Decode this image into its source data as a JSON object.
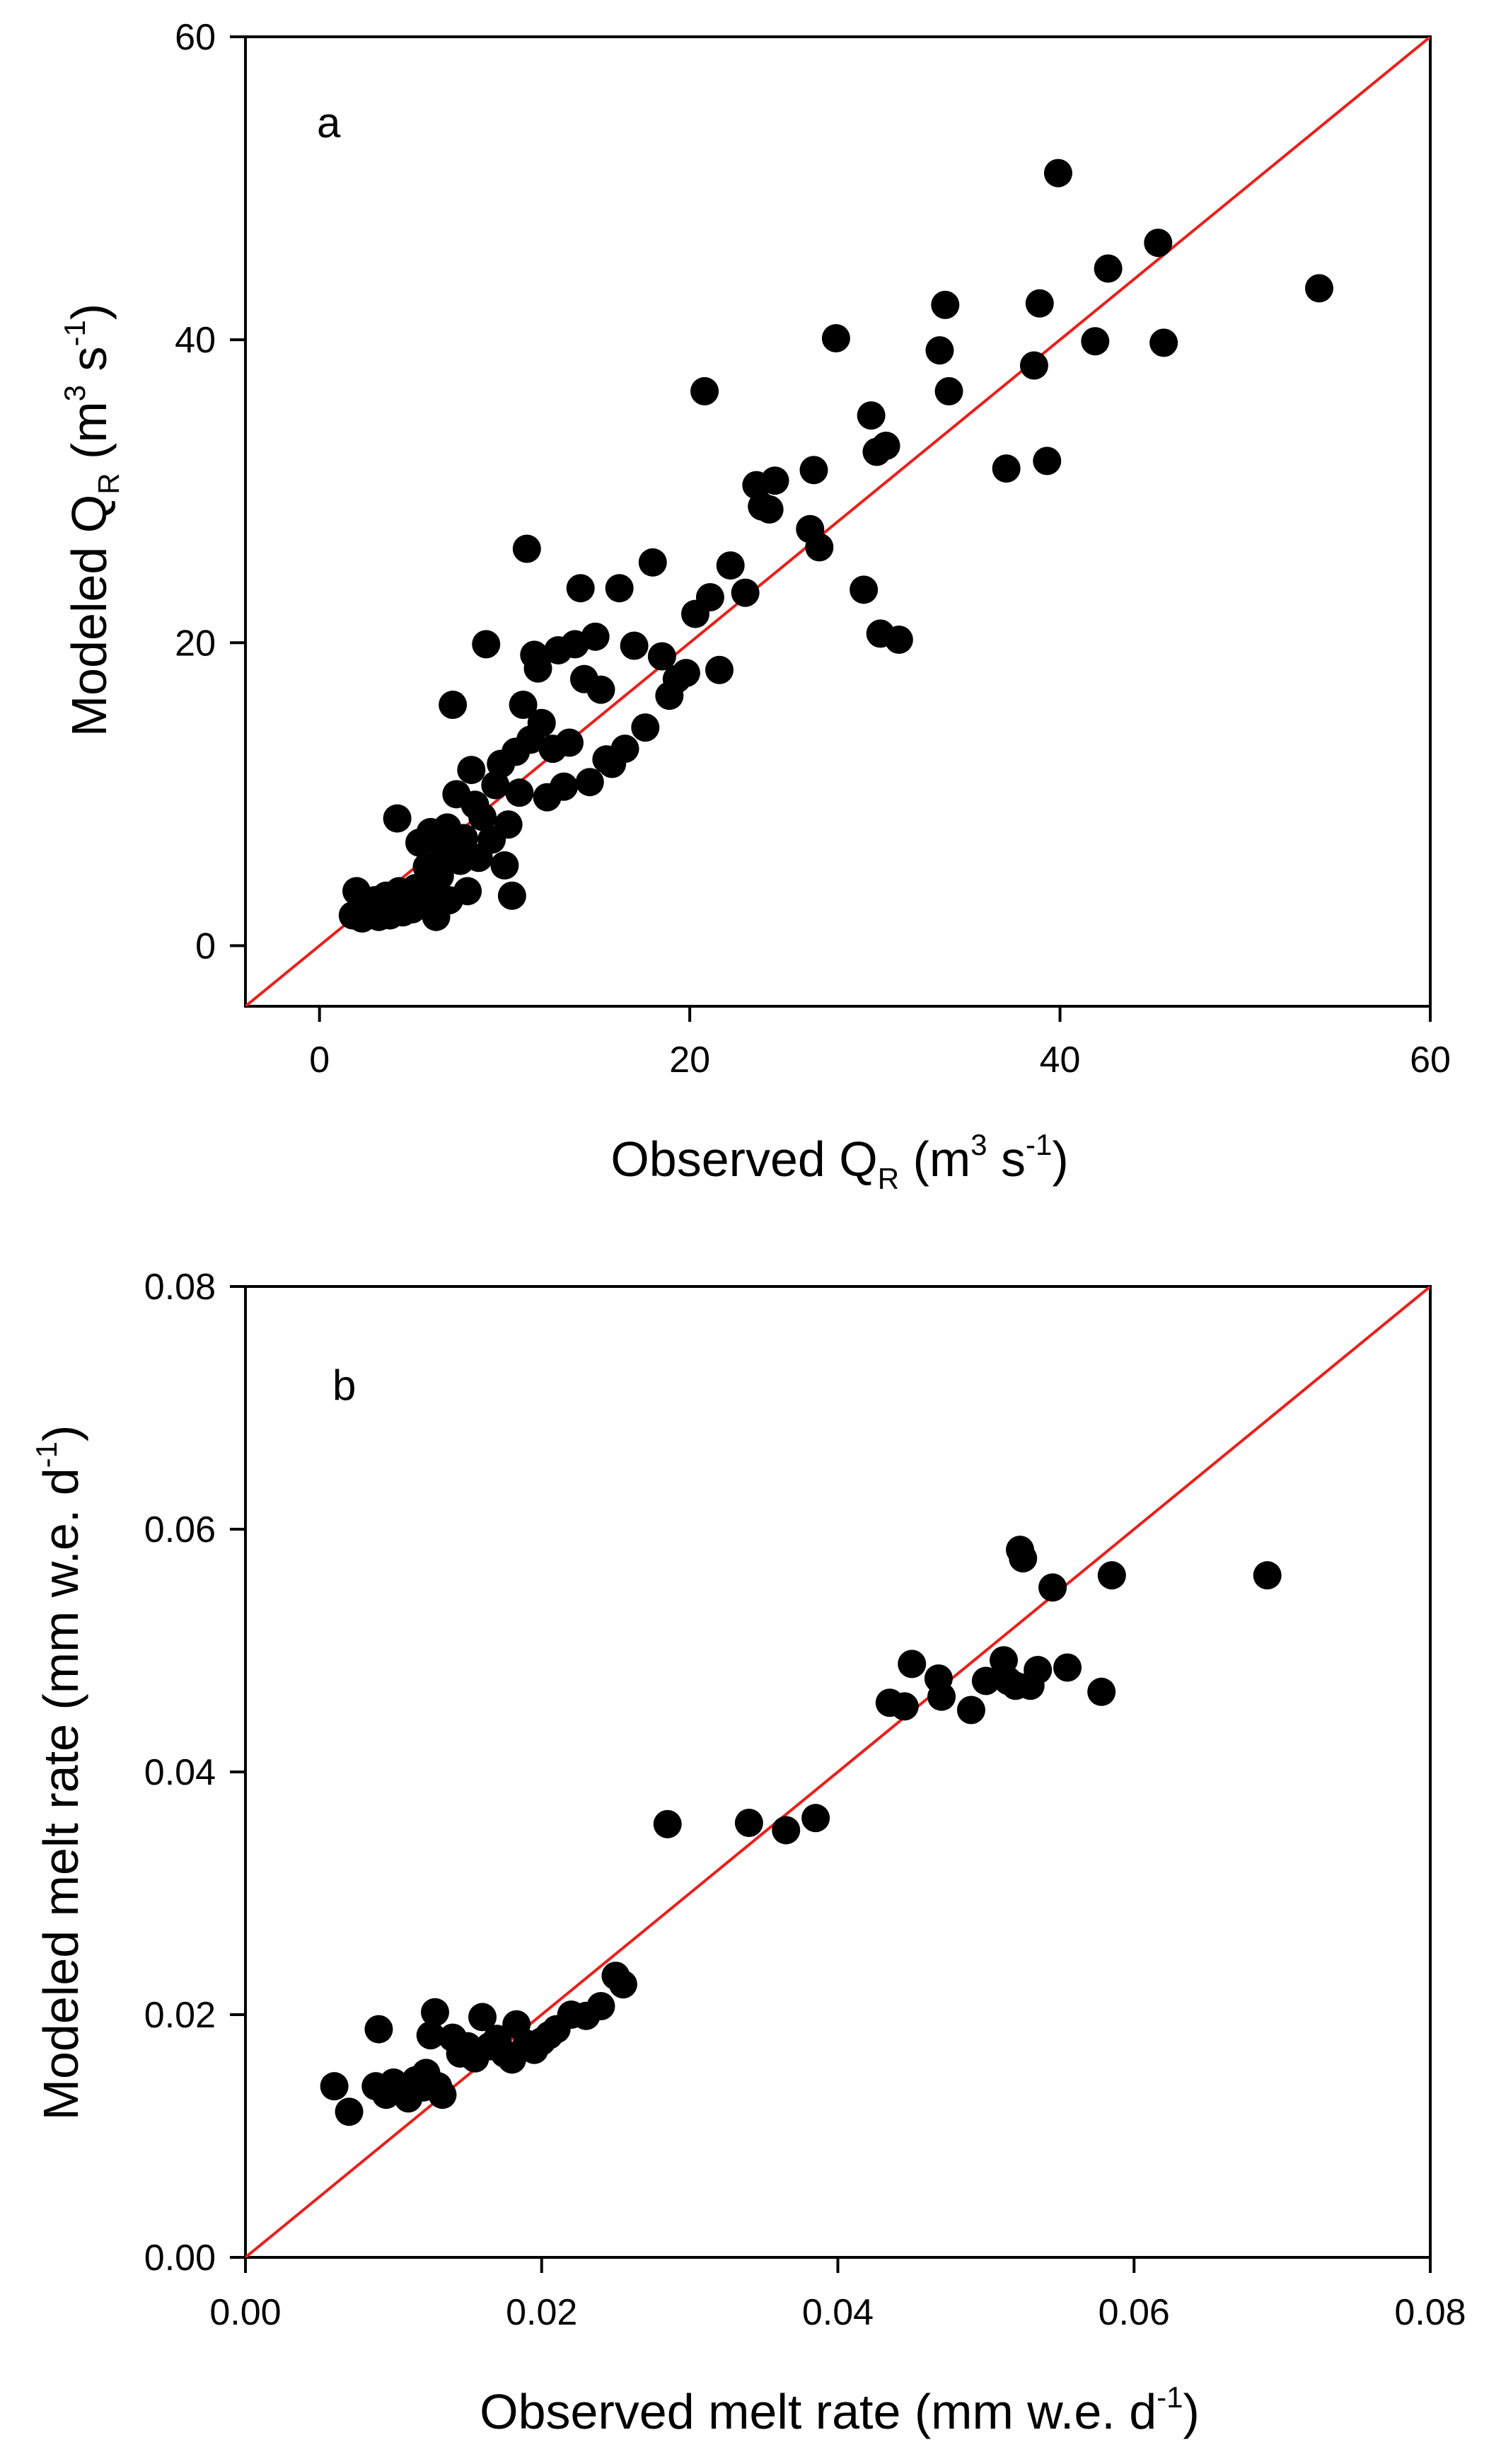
{
  "chart_data": [
    {
      "type": "scatter",
      "panel_label": "a",
      "xlabel": {
        "pre": "Observed Q",
        "sub": "R",
        "mid": " (m",
        "sup1": "3",
        "mid2": " s",
        "sup2": "-1",
        "post": ")"
      },
      "ylabel": {
        "pre": "Modeled Q",
        "sub": "R",
        "mid": " (m",
        "sup1": "3",
        "mid2": " s",
        "sup2": "-1",
        "post": ")"
      },
      "xlim": [
        -4,
        60
      ],
      "ylim": [
        -4,
        60
      ],
      "xticks": [
        0,
        20,
        40,
        60
      ],
      "yticks": [
        0,
        20,
        40,
        60
      ],
      "xtick_labels": [
        "0",
        "20",
        "40",
        "60"
      ],
      "ytick_labels": [
        "0",
        "20",
        "40",
        "60"
      ],
      "reference_line": {
        "label": "1:1 line",
        "color": "#e8201c",
        "from": [
          -4,
          -4
        ],
        "to": [
          60,
          60
        ]
      },
      "marker_color": "#000000",
      "points": [
        [
          1.8,
          2.0
        ],
        [
          2.0,
          3.6
        ],
        [
          2.3,
          1.8
        ],
        [
          2.5,
          2.8
        ],
        [
          2.8,
          2.2
        ],
        [
          3.0,
          3.0
        ],
        [
          3.2,
          1.9
        ],
        [
          3.4,
          2.5
        ],
        [
          3.6,
          3.3
        ],
        [
          3.8,
          2.0
        ],
        [
          4.0,
          2.7
        ],
        [
          4.2,
          8.4
        ],
        [
          4.3,
          3.6
        ],
        [
          4.5,
          2.2
        ],
        [
          4.7,
          3.1
        ],
        [
          5.0,
          2.4
        ],
        [
          5.2,
          3.8
        ],
        [
          5.4,
          6.8
        ],
        [
          5.6,
          2.9
        ],
        [
          5.8,
          5.2
        ],
        [
          6.0,
          7.5
        ],
        [
          6.1,
          3.4
        ],
        [
          6.3,
          1.9
        ],
        [
          6.5,
          4.6
        ],
        [
          6.7,
          6.3
        ],
        [
          6.9,
          7.8
        ],
        [
          7.0,
          3.0
        ],
        [
          7.2,
          15.9
        ],
        [
          7.4,
          10.0
        ],
        [
          7.6,
          5.6
        ],
        [
          7.8,
          7.1
        ],
        [
          8.0,
          3.6
        ],
        [
          8.2,
          11.6
        ],
        [
          8.4,
          9.3
        ],
        [
          8.6,
          5.8
        ],
        [
          8.8,
          8.5
        ],
        [
          9.0,
          19.9
        ],
        [
          9.3,
          7.0
        ],
        [
          9.5,
          10.6
        ],
        [
          9.8,
          12.0
        ],
        [
          10.0,
          5.3
        ],
        [
          10.2,
          8.0
        ],
        [
          10.4,
          3.3
        ],
        [
          10.6,
          12.8
        ],
        [
          10.8,
          10.1
        ],
        [
          11.0,
          15.9
        ],
        [
          11.2,
          26.2
        ],
        [
          11.4,
          13.6
        ],
        [
          11.6,
          19.2
        ],
        [
          11.8,
          18.3
        ],
        [
          12.0,
          14.7
        ],
        [
          12.3,
          9.8
        ],
        [
          12.6,
          13.0
        ],
        [
          12.9,
          19.5
        ],
        [
          13.2,
          10.5
        ],
        [
          13.5,
          13.4
        ],
        [
          13.8,
          19.9
        ],
        [
          14.1,
          23.6
        ],
        [
          14.3,
          17.6
        ],
        [
          14.6,
          10.8
        ],
        [
          14.9,
          20.4
        ],
        [
          15.2,
          16.9
        ],
        [
          15.5,
          12.3
        ],
        [
          15.8,
          12.0
        ],
        [
          16.2,
          23.6
        ],
        [
          16.5,
          13.0
        ],
        [
          17.0,
          19.8
        ],
        [
          17.6,
          14.4
        ],
        [
          18.0,
          25.3
        ],
        [
          18.5,
          19.1
        ],
        [
          18.9,
          16.5
        ],
        [
          19.3,
          17.6
        ],
        [
          19.8,
          18.0
        ],
        [
          20.3,
          21.9
        ],
        [
          20.8,
          36.6
        ],
        [
          21.1,
          23.0
        ],
        [
          21.6,
          18.2
        ],
        [
          22.2,
          25.1
        ],
        [
          23.0,
          23.3
        ],
        [
          23.6,
          30.4
        ],
        [
          23.9,
          29.0
        ],
        [
          24.3,
          28.8
        ],
        [
          24.6,
          30.7
        ],
        [
          26.5,
          27.5
        ],
        [
          26.7,
          31.4
        ],
        [
          27.0,
          26.3
        ],
        [
          27.9,
          40.1
        ],
        [
          29.4,
          23.5
        ],
        [
          29.8,
          35.0
        ],
        [
          30.1,
          32.6
        ],
        [
          30.3,
          20.6
        ],
        [
          30.6,
          33.0
        ],
        [
          31.3,
          20.2
        ],
        [
          33.5,
          39.3
        ],
        [
          33.8,
          42.3
        ],
        [
          34.0,
          36.6
        ],
        [
          37.1,
          31.5
        ],
        [
          38.6,
          38.3
        ],
        [
          38.9,
          42.4
        ],
        [
          39.3,
          32.0
        ],
        [
          39.9,
          51.0
        ],
        [
          41.9,
          39.9
        ],
        [
          42.6,
          44.7
        ],
        [
          45.3,
          46.4
        ],
        [
          45.6,
          39.8
        ],
        [
          54.0,
          43.4
        ]
      ]
    },
    {
      "type": "scatter",
      "panel_label": "b",
      "xlabel": {
        "pre": "Observed melt rate (mm w.e. d",
        "sup": "-1",
        "post": ")"
      },
      "ylabel": {
        "pre": "Modeled melt rate (mm w.e. d",
        "sup": "-1",
        "post": ")"
      },
      "xlim": [
        0,
        0.08
      ],
      "ylim": [
        0,
        0.08
      ],
      "xticks": [
        0,
        0.02,
        0.04,
        0.06,
        0.08
      ],
      "yticks": [
        0,
        0.02,
        0.04,
        0.06,
        0.08
      ],
      "xtick_labels": [
        "0.00",
        "0.02",
        "0.04",
        "0.06",
        "0.08"
      ],
      "ytick_labels": [
        "0.00",
        "0.02",
        "0.04",
        "0.06",
        "0.08"
      ],
      "reference_line": {
        "label": "1:1 line",
        "color": "#e8201c",
        "from": [
          0,
          0
        ],
        "to": [
          0.08,
          0.08
        ]
      },
      "marker_color": "#000000",
      "points": [
        [
          0.006,
          0.0141
        ],
        [
          0.007,
          0.012
        ],
        [
          0.0088,
          0.0141
        ],
        [
          0.009,
          0.0188
        ],
        [
          0.0095,
          0.0134
        ],
        [
          0.01,
          0.0144
        ],
        [
          0.0105,
          0.0137
        ],
        [
          0.011,
          0.0131
        ],
        [
          0.0115,
          0.0146
        ],
        [
          0.012,
          0.014
        ],
        [
          0.0122,
          0.0152
        ],
        [
          0.0125,
          0.0183
        ],
        [
          0.0128,
          0.0202
        ],
        [
          0.013,
          0.0141
        ],
        [
          0.0133,
          0.0134
        ],
        [
          0.014,
          0.0181
        ],
        [
          0.0145,
          0.0168
        ],
        [
          0.015,
          0.0174
        ],
        [
          0.0155,
          0.0164
        ],
        [
          0.016,
          0.0198
        ],
        [
          0.0165,
          0.0174
        ],
        [
          0.017,
          0.018
        ],
        [
          0.0175,
          0.0168
        ],
        [
          0.018,
          0.0163
        ],
        [
          0.0183,
          0.0192
        ],
        [
          0.019,
          0.0176
        ],
        [
          0.0195,
          0.0171
        ],
        [
          0.02,
          0.0178
        ],
        [
          0.0205,
          0.0183
        ],
        [
          0.021,
          0.0188
        ],
        [
          0.022,
          0.02
        ],
        [
          0.023,
          0.0199
        ],
        [
          0.024,
          0.0207
        ],
        [
          0.025,
          0.0232
        ],
        [
          0.0255,
          0.0225
        ],
        [
          0.0285,
          0.0357
        ],
        [
          0.034,
          0.0358
        ],
        [
          0.0365,
          0.0352
        ],
        [
          0.0385,
          0.0362
        ],
        [
          0.0435,
          0.0457
        ],
        [
          0.0445,
          0.0454
        ],
        [
          0.045,
          0.0489
        ],
        [
          0.0468,
          0.0477
        ],
        [
          0.047,
          0.0462
        ],
        [
          0.049,
          0.0451
        ],
        [
          0.05,
          0.0475
        ],
        [
          0.0512,
          0.0492
        ],
        [
          0.0515,
          0.0475
        ],
        [
          0.052,
          0.0471
        ],
        [
          0.0523,
          0.0583
        ],
        [
          0.0525,
          0.0576
        ],
        [
          0.053,
          0.0471
        ],
        [
          0.0535,
          0.0484
        ],
        [
          0.0545,
          0.0552
        ],
        [
          0.0555,
          0.0486
        ],
        [
          0.0578,
          0.0466
        ],
        [
          0.0585,
          0.0562
        ],
        [
          0.069,
          0.0562
        ]
      ]
    }
  ]
}
